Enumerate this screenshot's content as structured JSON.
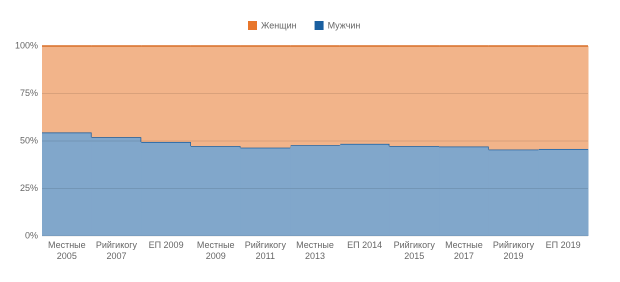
{
  "chart_data": {
    "type": "stepped_area",
    "categories": [
      "Местные 2005",
      "Рийгикогу 2007",
      "ЕП 2009",
      "Местные 2009",
      "Рийгикогу 2011",
      "Местные 2013",
      "ЕП 2014",
      "Рийгикогу 2015",
      "Местные 2017",
      "Рийгикогу 2019",
      "ЕП 2019"
    ],
    "series": [
      {
        "name": "Женщин",
        "color": "#e8762b",
        "values": [
          45.5,
          48,
          50.5,
          52.7,
          53.5,
          52.2,
          51.5,
          52.7,
          52.9,
          54.5,
          54.2
        ]
      },
      {
        "name": "Мужчин",
        "color": "#1a5fa0",
        "values": [
          54.5,
          52,
          49.5,
          47.3,
          46.5,
          47.8,
          48.5,
          47.3,
          47.1,
          45.5,
          45.8
        ]
      }
    ],
    "stacked": true,
    "ylim": [
      0,
      100
    ],
    "yticks": [
      {
        "value": 0,
        "label": "0%"
      },
      {
        "value": 25,
        "label": "25%"
      },
      {
        "value": 50,
        "label": "50%"
      },
      {
        "value": 75,
        "label": "75%"
      },
      {
        "value": 100,
        "label": "100%"
      }
    ],
    "grid": true,
    "legend": "top"
  }
}
